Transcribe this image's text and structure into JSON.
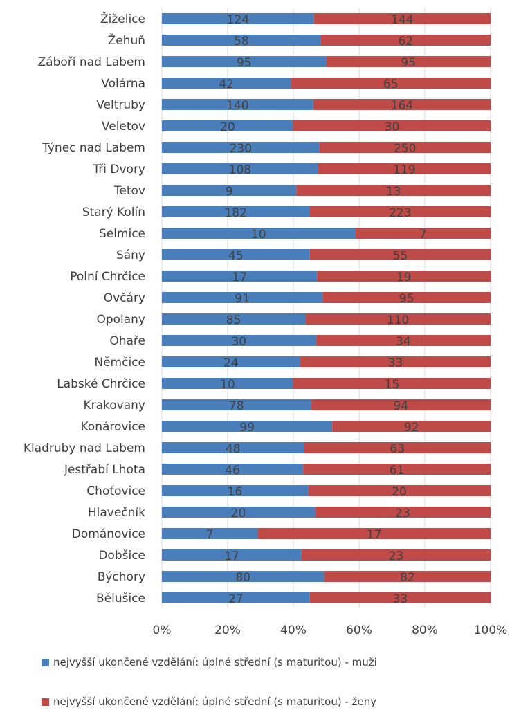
{
  "chart_data": {
    "type": "bar",
    "orientation": "horizontal",
    "stacked": "percent",
    "categories": [
      "Žiželice",
      "Žehuň",
      "Záboří nad Labem",
      "Volárna",
      "Veltruby",
      "Veletov",
      "Týnec nad Labem",
      "Tři Dvory",
      "Tetov",
      "Starý Kolín",
      "Selmice",
      "Sány",
      "Polní Chrčice",
      "Ovčáry",
      "Opolany",
      "Ohaře",
      "Němčice",
      "Labské Chrčice",
      "Krakovany",
      "Konárovice",
      "Kladruby nad Labem",
      "Jestřabí Lhota",
      "Choťovice",
      "Hlavečník",
      "Dománovice",
      "Dobšice",
      "Býchory",
      "Bělušice"
    ],
    "series": [
      {
        "name": "nejvyšší ukončené vzdělání: úplné střední (s maturitou) - muži",
        "color": "#4a7ebb",
        "values": [
          124,
          58,
          95,
          42,
          140,
          20,
          230,
          108,
          9,
          182,
          10,
          45,
          17,
          91,
          85,
          30,
          24,
          10,
          78,
          99,
          48,
          46,
          16,
          20,
          7,
          17,
          80,
          27
        ]
      },
      {
        "name": "nejvyšší ukončené vzdělání: úplné střední (s maturitou) - ženy",
        "color": "#be4b48",
        "values": [
          144,
          62,
          95,
          65,
          164,
          30,
          250,
          119,
          13,
          223,
          7,
          55,
          19,
          95,
          110,
          34,
          33,
          15,
          94,
          92,
          63,
          61,
          20,
          23,
          17,
          23,
          82,
          33
        ]
      }
    ],
    "xticks": [
      "0%",
      "20%",
      "40%",
      "60%",
      "80%",
      "100%"
    ],
    "xlim": [
      0,
      100
    ],
    "grid": true,
    "legend_position": "bottom"
  }
}
